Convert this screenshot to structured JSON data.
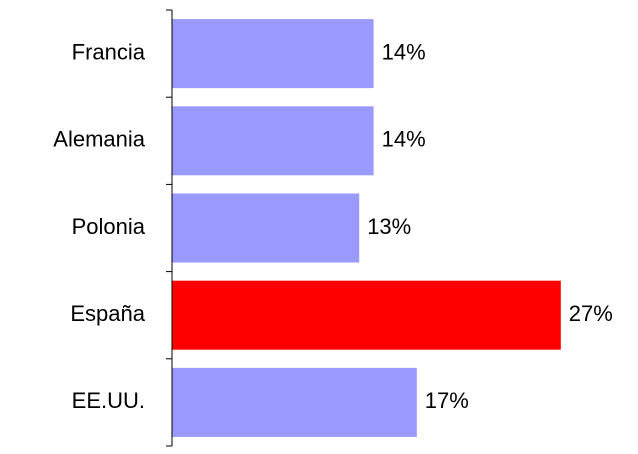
{
  "chart_data": {
    "type": "bar",
    "orientation": "horizontal",
    "categories": [
      "Francia",
      "Alemania",
      "Polonia",
      "España",
      "EE.UU."
    ],
    "values": [
      14,
      14,
      13,
      27,
      17
    ],
    "value_labels": [
      "14%",
      "14%",
      "13%",
      "27%",
      "17%"
    ],
    "colors": [
      "#9999ff",
      "#9999ff",
      "#9999ff",
      "#ff0000",
      "#9999ff"
    ]
  }
}
